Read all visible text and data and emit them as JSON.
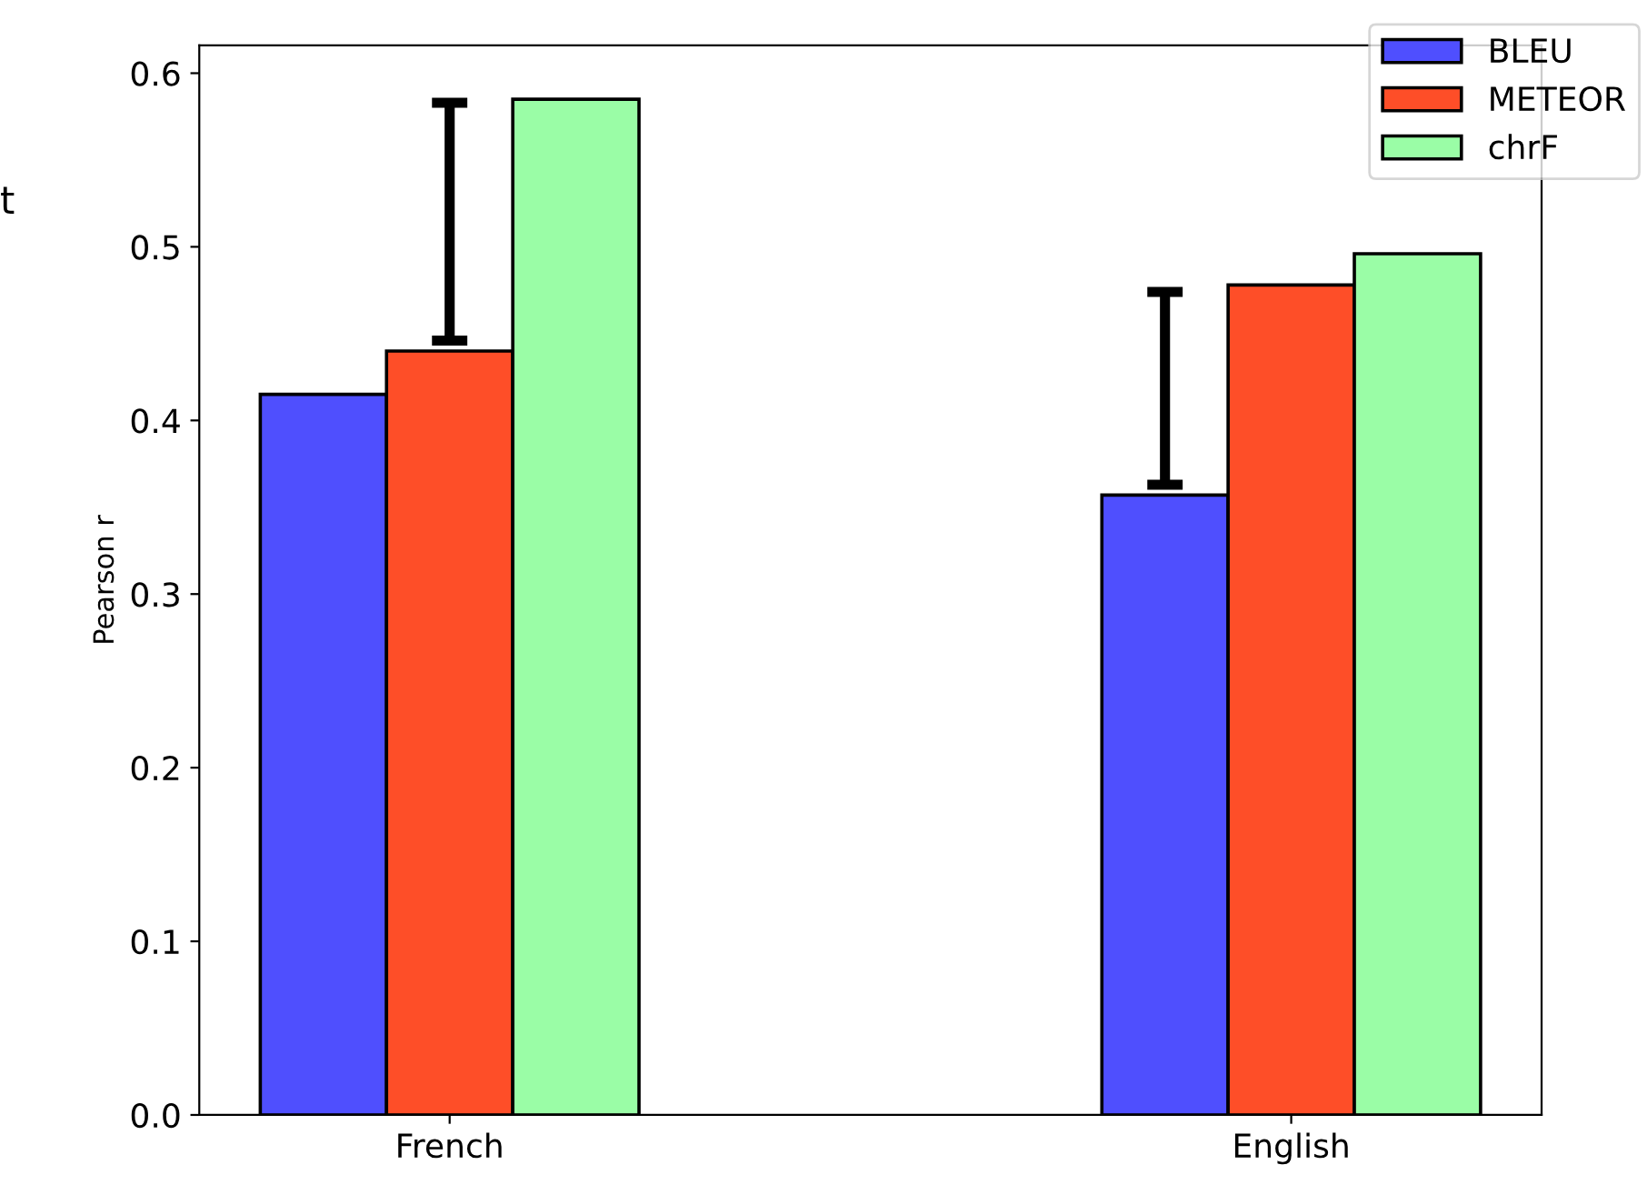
{
  "chart_data": {
    "type": "bar",
    "ylabel": "Pearson r",
    "categories": [
      "French",
      "English"
    ],
    "series": [
      {
        "name": "BLEU",
        "color": "#4f4ffe",
        "values": [
          0.415,
          0.357
        ],
        "errors": [
          null,
          [
            0.363,
            0.474
          ]
        ]
      },
      {
        "name": "METEOR",
        "color": "#fe4e28",
        "values": [
          0.44,
          0.478
        ],
        "errors": [
          [
            0.446,
            0.583
          ],
          null
        ]
      },
      {
        "name": "chrF",
        "color": "#9afda6",
        "values": [
          0.585,
          0.496
        ]
      }
    ],
    "ylim": [
      0,
      0.616
    ],
    "yticks": [
      {
        "value": 0,
        "label": "0.0"
      },
      0.1,
      0.2,
      0.3,
      0.4,
      0.5,
      0.6
    ],
    "grid": false,
    "legend": "top right",
    "annotations": [
      "t"
    ]
  }
}
